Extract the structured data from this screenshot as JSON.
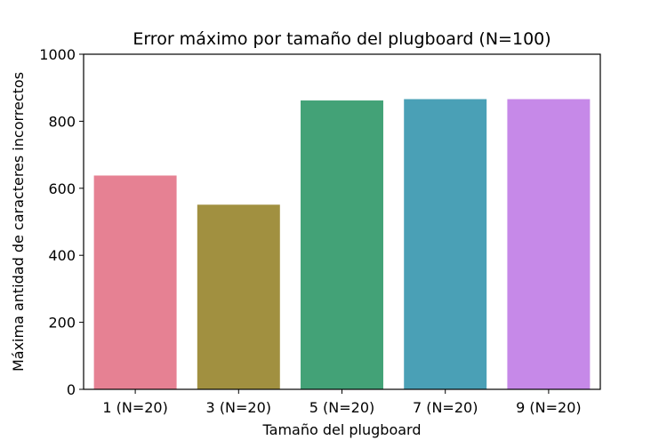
{
  "chart_data": {
    "type": "bar",
    "title": "Error máximo por tamaño del plugboard (N=100)",
    "xlabel": "Tamaño del plugboard",
    "ylabel": "Máxima antidad de caracteres incorrectos",
    "categories": [
      "1 (N=20)",
      "3 (N=20)",
      "5 (N=20)",
      "7 (N=20)",
      "9 (N=20)"
    ],
    "values": [
      638,
      551,
      862,
      866,
      866
    ],
    "colors": [
      "#e68193",
      "#a19040",
      "#43a277",
      "#4aa0b6",
      "#c689e8"
    ],
    "ylim": [
      0,
      1000
    ],
    "yticks": [
      0,
      200,
      400,
      600,
      800,
      1000
    ],
    "grid": false,
    "legend": "none"
  }
}
